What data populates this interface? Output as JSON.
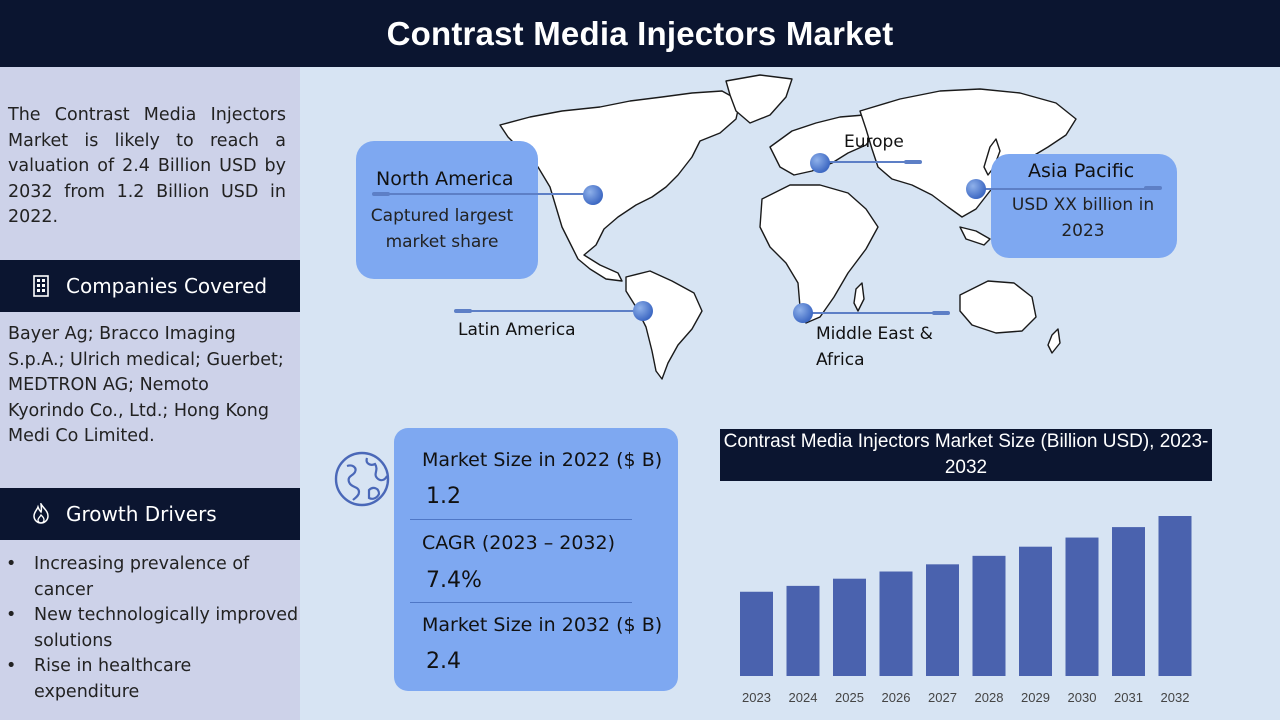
{
  "title": "Contrast Media Injectors Market",
  "sidebar": {
    "intro": "The Contrast Media Injectors Market is likely to reach a valuation of 2.4 Billion USD by 2032 from 1.2 Billion USD in 2022.",
    "companies_heading": "Companies Covered",
    "companies_text": "Bayer Ag; Bracco Imaging S.p.A.; Ulrich medical; Guerbet; MEDTRON AG; Nemoto Kyorindo Co., Ltd.; Hong Kong Medi Co Limited.",
    "drivers_heading": "Growth Drivers",
    "drivers": [
      "Increasing prevalence of cancer",
      "New technologically improved solutions",
      "Rise in healthcare expenditure"
    ]
  },
  "regions": {
    "north_america": {
      "title": "North America",
      "note": "Captured largest market share"
    },
    "europe": {
      "title": "Europe"
    },
    "asia_pacific": {
      "title": "Asia Pacific",
      "note": "USD XX billion in 2023"
    },
    "latin_america": {
      "title": "Latin America"
    },
    "mea": {
      "title": "Middle East & Africa"
    }
  },
  "stats": [
    {
      "label": "Market Size in 2022 ($ B)",
      "value": "1.2"
    },
    {
      "label": "CAGR (2023 – 2032)",
      "value": "7.4%"
    },
    {
      "label": "Market Size in 2032 ($ B)",
      "value": "2.4"
    }
  ],
  "colors": {
    "header_bg": "#0b1530",
    "sidebar_bg": "#cdd2e9",
    "page_bg": "#d7e4f3",
    "card_bg": "#7ea8f1",
    "bar": "#4a62ae"
  },
  "icons": {
    "companies": "building-icon",
    "drivers": "flame-icon",
    "stats": "globe-icon"
  },
  "chart_data": {
    "type": "bar",
    "title": "Contrast Media Injectors Market Size (Billion USD), 2023-2032",
    "categories": [
      "2023",
      "2024",
      "2025",
      "2026",
      "2027",
      "2028",
      "2029",
      "2030",
      "2031",
      "2032"
    ],
    "values": [
      1.29,
      1.38,
      1.49,
      1.6,
      1.71,
      1.84,
      1.98,
      2.12,
      2.28,
      2.45
    ],
    "xlabel": "",
    "ylabel": "",
    "grid": false,
    "legend": "none"
  }
}
